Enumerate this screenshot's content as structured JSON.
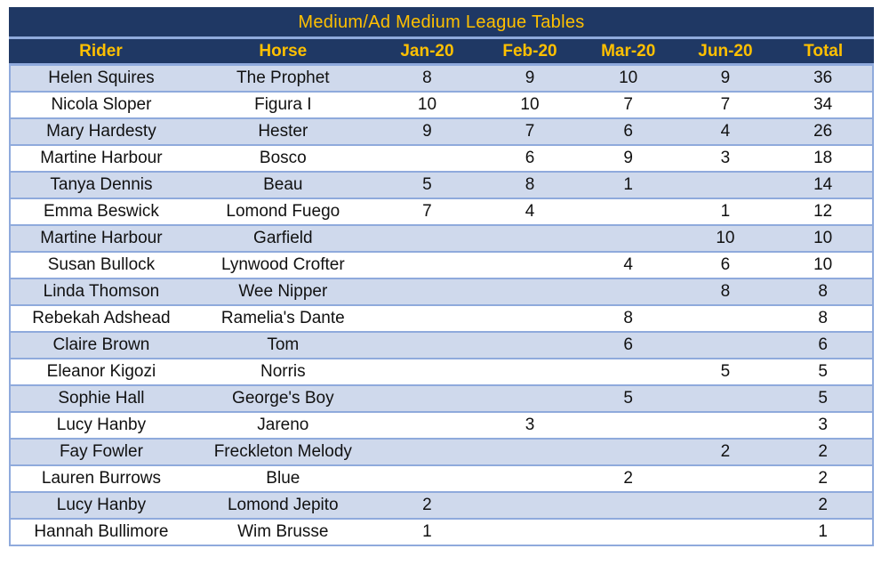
{
  "colors": {
    "header_bg": "#1F3864",
    "header_text": "#FFC000",
    "band_row_bg": "#CFD9EC",
    "grid_border": "#8FAADC",
    "body_text": "#111111"
  },
  "table": {
    "title": "Medium/Ad Medium League Tables",
    "columns": [
      "Rider",
      "Horse",
      "Jan-20",
      "Feb-20",
      "Mar-20",
      "Jun-20",
      "Total"
    ],
    "rows": [
      [
        "Helen Squires",
        "The Prophet",
        "8",
        "9",
        "10",
        "9",
        "36"
      ],
      [
        "Nicola Sloper",
        "Figura I",
        "10",
        "10",
        "7",
        "7",
        "34"
      ],
      [
        "Mary Hardesty",
        "Hester",
        "9",
        "7",
        "6",
        "4",
        "26"
      ],
      [
        "Martine Harbour",
        "Bosco",
        "",
        "6",
        "9",
        "3",
        "18"
      ],
      [
        "Tanya Dennis",
        "Beau",
        "5",
        "8",
        "1",
        "",
        "14"
      ],
      [
        "Emma Beswick",
        "Lomond Fuego",
        "7",
        "4",
        "",
        "1",
        "12"
      ],
      [
        "Martine Harbour",
        "Garfield",
        "",
        "",
        "",
        "10",
        "10"
      ],
      [
        "Susan Bullock",
        "Lynwood Crofter",
        "",
        "",
        "4",
        "6",
        "10"
      ],
      [
        "Linda Thomson",
        "Wee Nipper",
        "",
        "",
        "",
        "8",
        "8"
      ],
      [
        "Rebekah Adshead",
        "Ramelia's Dante",
        "",
        "",
        "8",
        "",
        "8"
      ],
      [
        "Claire Brown",
        "Tom",
        "",
        "",
        "6",
        "",
        "6"
      ],
      [
        "Eleanor Kigozi",
        "Norris",
        "",
        "",
        "",
        "5",
        "5"
      ],
      [
        "Sophie Hall",
        "George's Boy",
        "",
        "",
        "5",
        "",
        "5"
      ],
      [
        "Lucy Hanby",
        "Jareno",
        "",
        "3",
        "",
        "",
        "3"
      ],
      [
        "Fay Fowler",
        "Freckleton Melody",
        "",
        "",
        "",
        "2",
        "2"
      ],
      [
        "Lauren Burrows",
        "Blue",
        "",
        "",
        "2",
        "",
        "2"
      ],
      [
        "Lucy Hanby",
        "Lomond Jepito",
        "2",
        "",
        "",
        "",
        "2"
      ],
      [
        "Hannah Bullimore",
        "Wim Brusse",
        "1",
        "",
        "",
        "",
        "1"
      ]
    ]
  }
}
